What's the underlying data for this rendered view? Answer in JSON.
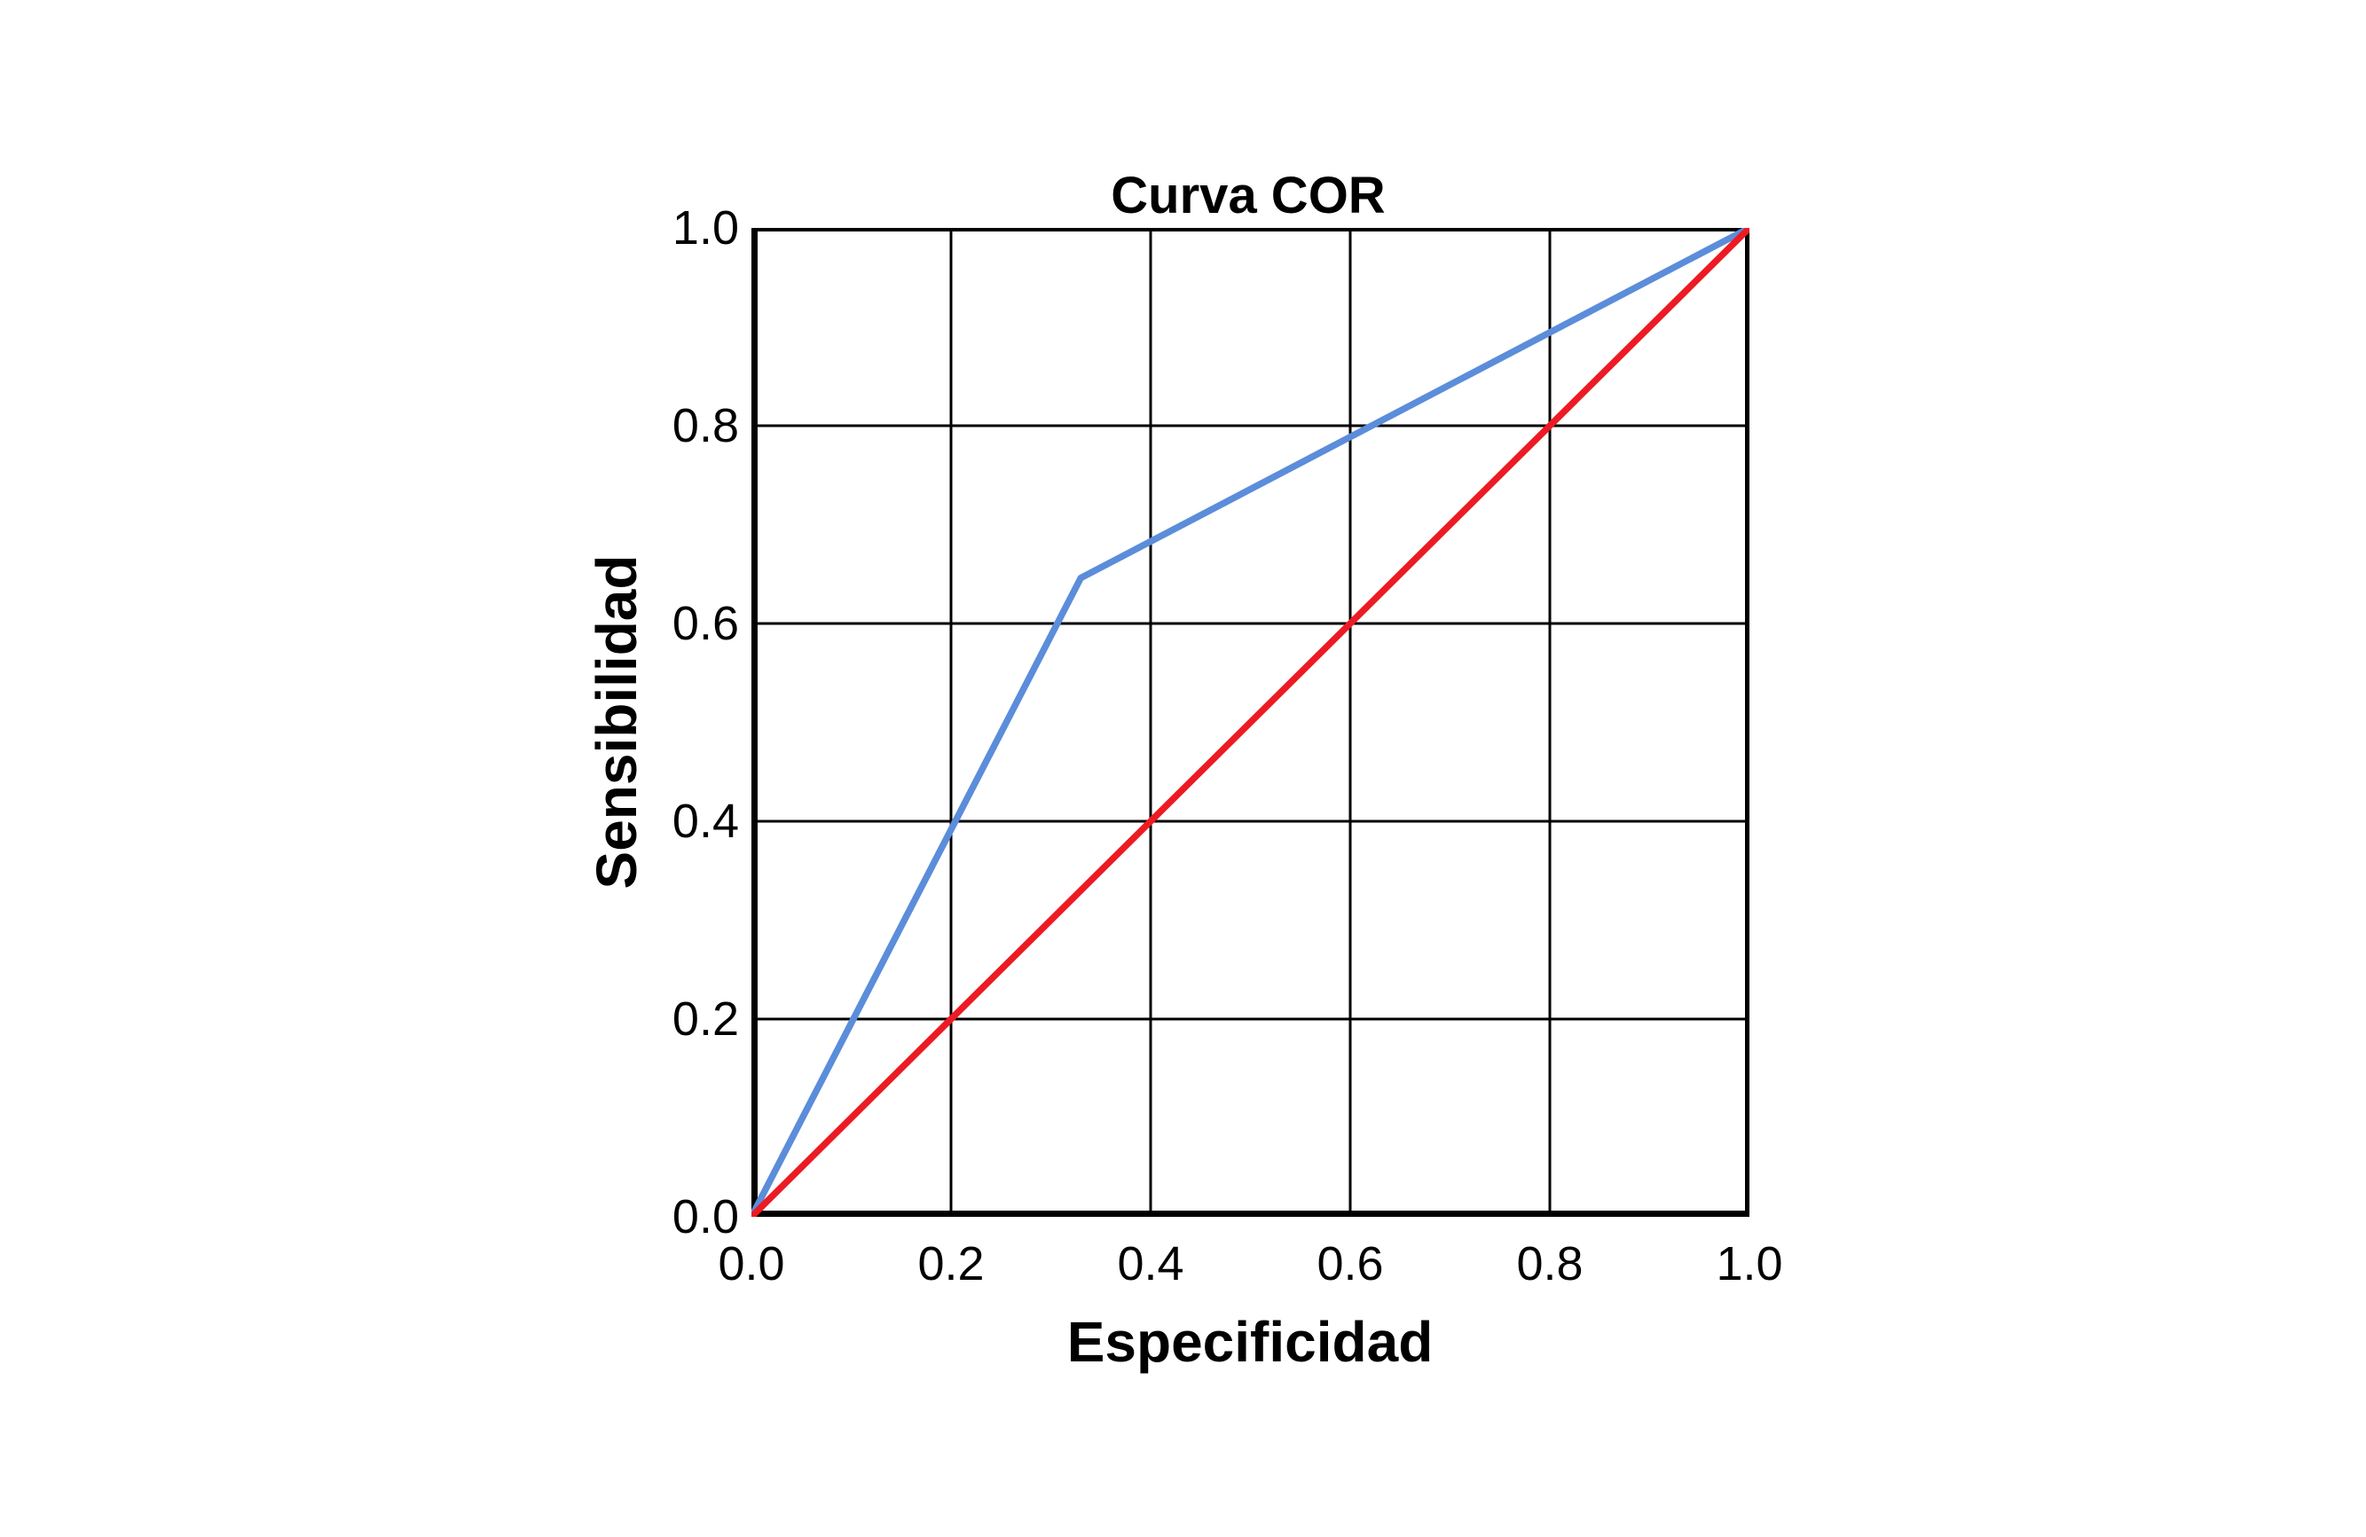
{
  "chart_data": {
    "type": "line",
    "title": "Curva COR",
    "xlabel": "Especificidad",
    "ylabel": "Sensibilidad",
    "xlim": [
      0,
      1
    ],
    "ylim": [
      0,
      1
    ],
    "grid": true,
    "legend": false,
    "background": "#FFFFFF",
    "axis_color": "#000000",
    "x_ticks": {
      "values": [
        0.0,
        0.2,
        0.4,
        0.6,
        0.8,
        1.0
      ],
      "labels": [
        "0.0",
        "0.2",
        "0.4",
        "0.6",
        "0.8",
        "1.0"
      ]
    },
    "y_ticks": {
      "values": [
        0.0,
        0.2,
        0.4,
        0.6,
        0.8,
        1.0
      ],
      "labels": [
        "0.0",
        "0.2",
        "0.4",
        "0.6",
        "0.8",
        "1.0"
      ]
    },
    "series": [
      {
        "name": "roc-curve",
        "color": "#5B8DDA",
        "points": [
          [
            0.0,
            0.0
          ],
          [
            0.33,
            0.646
          ],
          [
            1.0,
            1.0
          ]
        ]
      },
      {
        "name": "reference-diagonal",
        "color": "#EC1B23",
        "points": [
          [
            0.0,
            0.0
          ],
          [
            1.0,
            1.0
          ]
        ]
      }
    ]
  }
}
